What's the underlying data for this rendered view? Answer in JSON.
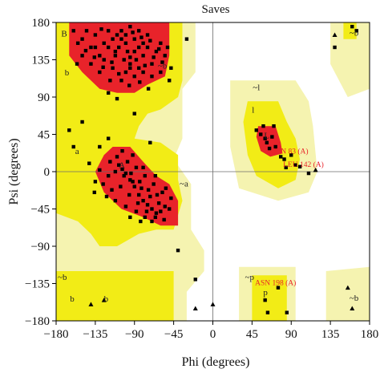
{
  "chart_data": {
    "type": "scatter",
    "title": "Saves",
    "xlabel": "Phi (degrees)",
    "ylabel": "Psi (degrees)",
    "xlim": [
      -180,
      180
    ],
    "ylim": [
      -180,
      180
    ],
    "x_ticks": [
      "−180",
      "−135",
      "−90",
      "−45",
      "0",
      "45",
      "90",
      "135",
      "180"
    ],
    "y_ticks": [
      "180",
      "135",
      "90",
      "45",
      "0",
      "−45",
      "−90",
      "−135",
      "−180"
    ],
    "grid": false,
    "region_colors": {
      "core": "#e8232a",
      "allowed": "#f2ec16",
      "generous": "#f5f3b0",
      "disallowed": "#ffffff"
    },
    "region_labels": [
      {
        "text": "B",
        "x": -176,
        "y": 167
      },
      {
        "text": "b",
        "x": -172,
        "y": 120
      },
      {
        "text": "~b",
        "x": -65,
        "y": 128
      },
      {
        "text": "A",
        "x": -110,
        "y": 8
      },
      {
        "text": "a",
        "x": -160,
        "y": 25
      },
      {
        "text": "~a",
        "x": -40,
        "y": -14
      },
      {
        "text": "~l",
        "x": 44,
        "y": 102
      },
      {
        "text": "l",
        "x": 43,
        "y": 75
      },
      {
        "text": "L",
        "x": 57,
        "y": 44
      },
      {
        "text": "~p",
        "x": 35,
        "y": -127
      },
      {
        "text": "p",
        "x": 56,
        "y": -145
      },
      {
        "text": "~b",
        "x": -180,
        "y": -127
      },
      {
        "text": "b",
        "x": -166,
        "y": -153
      },
      {
        "text": "b",
        "x": -127,
        "y": -153
      },
      {
        "text": "~b",
        "x": 155,
        "y": 168
      },
      {
        "text": "~b",
        "x": 155,
        "y": -152
      }
    ],
    "annotations": [
      {
        "text": "GLN 83 (A)",
        "x": 88,
        "y": 22,
        "color": "#e8232a"
      },
      {
        "text": "LEU 142 (A)",
        "x": 104,
        "y": 6,
        "color": "#e8232a"
      },
      {
        "text": "ASN 198 (A)",
        "x": 72,
        "y": -137,
        "color": "#e8232a"
      }
    ],
    "series": [
      {
        "marker": "square",
        "points": [
          [
            -108,
            150
          ],
          [
            -112,
            145
          ],
          [
            -95,
            138
          ],
          [
            -120,
            150
          ],
          [
            -105,
            160
          ],
          [
            -100,
            155
          ],
          [
            -90,
            160
          ],
          [
            -85,
            150
          ],
          [
            -110,
            165
          ],
          [
            -130,
            140
          ],
          [
            -125,
            135
          ],
          [
            -115,
            125
          ],
          [
            -100,
            120
          ],
          [
            -95,
            130
          ],
          [
            -80,
            140
          ],
          [
            -75,
            150
          ],
          [
            -70,
            130
          ],
          [
            -65,
            145
          ],
          [
            -140,
            150
          ],
          [
            -150,
            160
          ],
          [
            -135,
            165
          ],
          [
            -120,
            170
          ],
          [
            -105,
            170
          ],
          [
            -95,
            175
          ],
          [
            -85,
            170
          ],
          [
            -75,
            165
          ],
          [
            -60,
            155
          ],
          [
            -55,
            140
          ],
          [
            -60,
            120
          ],
          [
            -70,
            115
          ],
          [
            -80,
            120
          ],
          [
            -90,
            115
          ],
          [
            -105,
            110
          ],
          [
            -118,
            110
          ],
          [
            -130,
            120
          ],
          [
            -140,
            130
          ],
          [
            -150,
            140
          ],
          [
            -155,
            155
          ],
          [
            -145,
            170
          ],
          [
            -128,
            172
          ],
          [
            -112,
            140
          ],
          [
            -98,
            145
          ],
          [
            -88,
            135
          ],
          [
            -78,
            128
          ],
          [
            -68,
            138
          ],
          [
            -58,
            132
          ],
          [
            -62,
            148
          ],
          [
            -72,
            158
          ],
          [
            -82,
            162
          ],
          [
            -92,
            168
          ],
          [
            -102,
            135
          ],
          [
            -116,
            132
          ],
          [
            -126,
            126
          ],
          [
            -136,
            138
          ],
          [
            -146,
            146
          ],
          [
            -156,
            130
          ],
          [
            -108,
            118
          ],
          [
            -96,
            104
          ],
          [
            -84,
            108
          ],
          [
            -74,
            100
          ],
          [
            -48,
            125
          ],
          [
            -120,
            95
          ],
          [
            -110,
            88
          ],
          [
            -30,
            160
          ],
          [
            -160,
            170
          ],
          [
            -50,
            110
          ],
          [
            -52,
            150
          ],
          [
            -115,
            160
          ],
          [
            -100,
            165
          ],
          [
            -90,
            145
          ],
          [
            -80,
            155
          ],
          [
            -125,
            155
          ],
          [
            -135,
            150
          ],
          [
            -95,
            125
          ],
          [
            -85,
            125
          ],
          [
            -108,
            8
          ],
          [
            -100,
            -2
          ],
          [
            -95,
            -10
          ],
          [
            -90,
            -18
          ],
          [
            -85,
            -28
          ],
          [
            -80,
            -35
          ],
          [
            -75,
            -40
          ],
          [
            -70,
            -45
          ],
          [
            -65,
            -50
          ],
          [
            -60,
            -48
          ],
          [
            -55,
            -42
          ],
          [
            -62,
            -38
          ],
          [
            -72,
            -30
          ],
          [
            -82,
            -20
          ],
          [
            -92,
            -12
          ],
          [
            -102,
            -5
          ],
          [
            -112,
            0
          ],
          [
            -118,
            12
          ],
          [
            -110,
            18
          ],
          [
            -98,
            12
          ],
          [
            -88,
            5
          ],
          [
            -78,
            -5
          ],
          [
            -68,
            -15
          ],
          [
            -58,
            -25
          ],
          [
            -64,
            -28
          ],
          [
            -74,
            -22
          ],
          [
            -84,
            -12
          ],
          [
            -94,
            -2
          ],
          [
            -104,
            3
          ],
          [
            -120,
            -5
          ],
          [
            -126,
            -15
          ],
          [
            -116,
            -22
          ],
          [
            -106,
            -18
          ],
          [
            -96,
            -28
          ],
          [
            -86,
            -38
          ],
          [
            -76,
            -48
          ],
          [
            -66,
            -55
          ],
          [
            -56,
            -58
          ],
          [
            -50,
            -45
          ],
          [
            -48,
            -32
          ],
          [
            -54,
            -20
          ],
          [
            -66,
            -5
          ],
          [
            -80,
            5
          ],
          [
            -92,
            20
          ],
          [
            -104,
            25
          ],
          [
            -130,
            2
          ],
          [
            -135,
            -12
          ],
          [
            -122,
            -30
          ],
          [
            -112,
            -35
          ],
          [
            -100,
            -42
          ],
          [
            -88,
            -48
          ],
          [
            -78,
            -55
          ],
          [
            -136,
            -25
          ],
          [
            -142,
            10
          ],
          [
            -70,
            -60
          ],
          [
            -130,
            30
          ],
          [
            -160,
            30
          ],
          [
            -165,
            50
          ],
          [
            -120,
            40
          ],
          [
            -150,
            60
          ],
          [
            -90,
            70
          ],
          [
            -72,
            35
          ],
          [
            -83,
            -60
          ],
          [
            -95,
            -55
          ],
          [
            55,
            45
          ],
          [
            60,
            40
          ],
          [
            62,
            35
          ],
          [
            50,
            50
          ],
          [
            68,
            42
          ],
          [
            72,
            30
          ],
          [
            65,
            28
          ],
          [
            78,
            18
          ],
          [
            82,
            15
          ],
          [
            90,
            20
          ],
          [
            95,
            8
          ],
          [
            100,
            6
          ],
          [
            84,
            5
          ],
          [
            70,
            55
          ],
          [
            110,
            -2
          ],
          [
            58,
            55
          ],
          [
            75,
            -140
          ],
          [
            60,
            -155
          ],
          [
            63,
            -170
          ],
          [
            85,
            -170
          ],
          [
            140,
            150
          ],
          [
            160,
            175
          ],
          [
            165,
            170
          ],
          [
            -40,
            -95
          ],
          [
            -20,
            -130
          ]
        ]
      },
      {
        "marker": "triangle",
        "points": [
          [
            118,
            2
          ],
          [
            140,
            165
          ],
          [
            155,
            -140
          ],
          [
            160,
            -165
          ],
          [
            -125,
            -155
          ],
          [
            -140,
            -160
          ],
          [
            -20,
            -165
          ],
          [
            0,
            -160
          ]
        ]
      }
    ]
  }
}
